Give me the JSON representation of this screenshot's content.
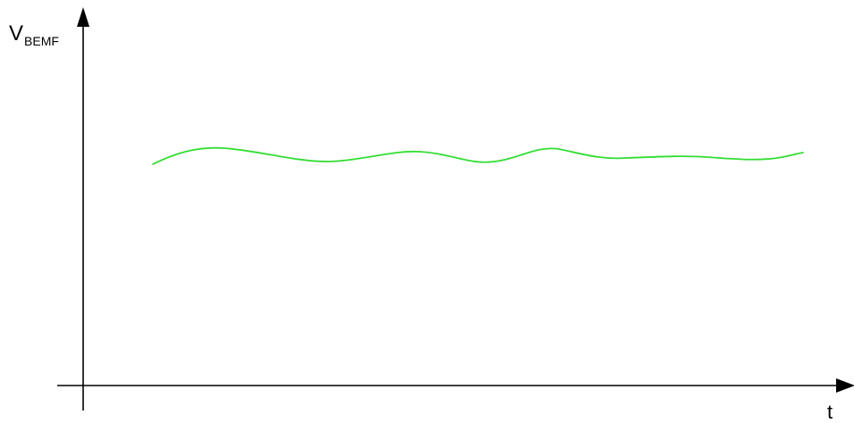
{
  "diagram": {
    "y_axis_label": "V",
    "y_axis_subscript": "BEMF",
    "x_axis_label": "t",
    "signal_color": "#33dd33",
    "axis_color": "#000000"
  }
}
